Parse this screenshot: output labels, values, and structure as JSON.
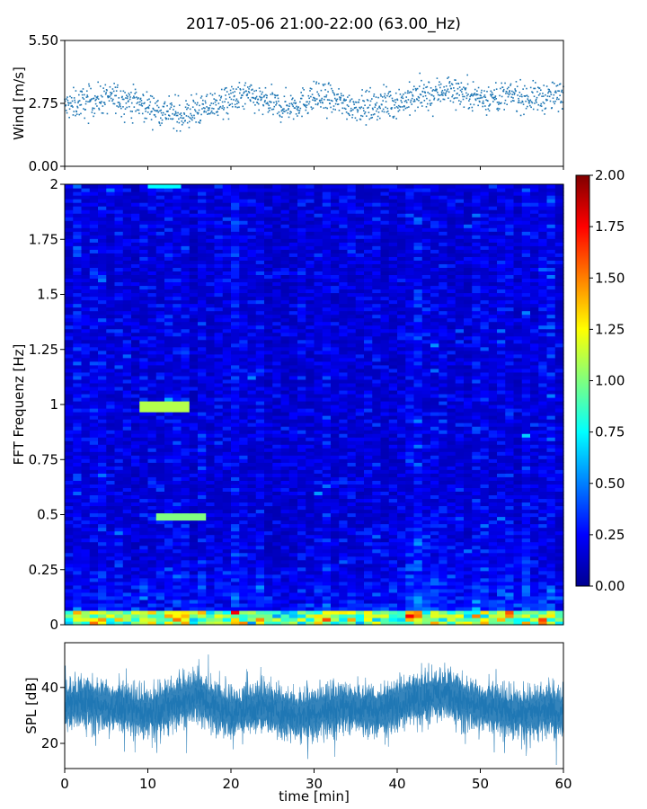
{
  "chart_data": [
    {
      "type": "scatter",
      "title": "2017-05-06 21:00-22:00 (63.00_Hz)",
      "ylabel": "Wind [m/s]",
      "xlim": [
        0,
        60
      ],
      "ylim": [
        0,
        5.5
      ],
      "yticks": [
        "0.00",
        "2.75",
        "5.50"
      ],
      "color": "#1f77b4",
      "series": [
        {
          "x": [
            0,
            2,
            4,
            6,
            8,
            10,
            12,
            14,
            16,
            18,
            20,
            22,
            24,
            26,
            28,
            30,
            32,
            34,
            36,
            38,
            40,
            42,
            44,
            46,
            48,
            50,
            52,
            54,
            56,
            58,
            60
          ],
          "values": [
            2.6,
            2.8,
            2.9,
            3.0,
            2.9,
            2.6,
            2.4,
            2.2,
            2.4,
            2.7,
            2.9,
            3.1,
            2.8,
            2.6,
            2.7,
            3.0,
            2.9,
            2.7,
            2.6,
            2.7,
            2.8,
            3.0,
            3.1,
            3.4,
            3.2,
            3.0,
            3.0,
            3.1,
            3.0,
            3.0,
            3.1
          ]
        }
      ]
    },
    {
      "type": "heatmap",
      "ylabel": "FFT Frequenz [Hz]",
      "xlim": [
        0,
        60
      ],
      "ylim": [
        0,
        2
      ],
      "yticks": [
        "0",
        "0.25",
        "0.5",
        "0.75",
        "1",
        "1.25",
        "1.5",
        "1.75",
        "2"
      ],
      "colorscale": "jet",
      "colorbar": {
        "range": [
          0,
          2
        ],
        "ticks": [
          "0.00",
          "0.25",
          "0.50",
          "0.75",
          "1.00",
          "1.25",
          "1.50",
          "1.75",
          "2.00"
        ]
      }
    },
    {
      "type": "line",
      "ylabel": "SPL [dB]",
      "xlabel": "time [min]",
      "xlim": [
        0,
        60
      ],
      "ylim": [
        11,
        56
      ],
      "yticks": [
        "20",
        "40"
      ],
      "xticks": [
        "0",
        "10",
        "20",
        "30",
        "40",
        "50",
        "60"
      ],
      "color": "#1f77b4",
      "series": [
        {
          "x": [
            0,
            2,
            4,
            6,
            8,
            10,
            12,
            14,
            16,
            18,
            20,
            22,
            24,
            26,
            28,
            30,
            32,
            34,
            36,
            38,
            40,
            42,
            44,
            46,
            48,
            50,
            52,
            54,
            56,
            58,
            60
          ],
          "values": [
            34,
            35,
            34,
            33,
            32,
            31,
            33,
            35,
            37,
            33,
            31,
            32,
            33,
            31,
            30,
            31,
            32,
            33,
            32,
            32,
            34,
            36,
            37,
            38,
            35,
            33,
            32,
            31,
            31,
            32,
            31
          ]
        }
      ]
    }
  ]
}
